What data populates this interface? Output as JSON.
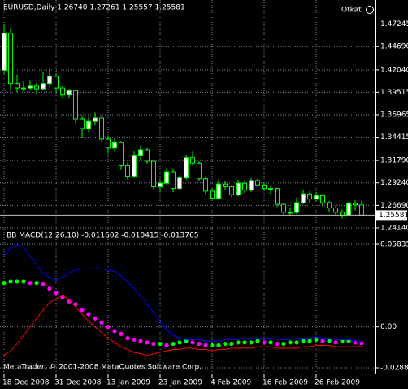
{
  "chart_data": [
    {
      "type": "candlestick",
      "title": "EURUSD,Daily  1.26740 1.27261 1.25557 1.25581",
      "categories": [
        "18 Dec 2008",
        null,
        null,
        null,
        null,
        null,
        null,
        null,
        "31 Dec 2008",
        null,
        null,
        null,
        null,
        null,
        null,
        null,
        "13 Jan 2009",
        null,
        null,
        null,
        null,
        null,
        null,
        null,
        "23 Jan 2009",
        null,
        null,
        null,
        null,
        null,
        null,
        null,
        "4 Feb 2009",
        null,
        null,
        null,
        null,
        null,
        null,
        null,
        "16 Feb 2009",
        null,
        null,
        null,
        null,
        null,
        null,
        null,
        "26 Feb 2009",
        null,
        null,
        null,
        null,
        null,
        null,
        null
      ],
      "open": [
        1.42,
        1.462,
        1.405,
        1.4,
        1.4,
        1.402,
        1.399,
        1.405,
        1.413,
        1.4,
        1.392,
        1.397,
        1.365,
        1.354,
        1.362,
        1.366,
        1.342,
        1.332,
        1.338,
        1.312,
        1.3,
        1.323,
        1.33,
        1.317,
        1.288,
        1.292,
        1.305,
        1.286,
        1.298,
        1.321,
        1.315,
        1.297,
        1.283,
        1.275,
        1.291,
        1.288,
        1.279,
        1.292,
        1.284,
        1.295,
        1.29,
        1.286,
        1.286,
        1.268,
        1.259,
        1.259,
        1.27,
        1.28,
        1.274,
        1.278,
        1.27,
        1.264,
        1.259,
        1.256,
        1.269,
        1.2674
      ],
      "high": [
        1.472,
        1.468,
        1.415,
        1.408,
        1.409,
        1.406,
        1.418,
        1.422,
        1.416,
        1.404,
        1.399,
        1.398,
        1.369,
        1.367,
        1.372,
        1.369,
        1.346,
        1.344,
        1.34,
        1.316,
        1.328,
        1.335,
        1.332,
        1.319,
        1.296,
        1.309,
        1.308,
        1.301,
        1.324,
        1.328,
        1.317,
        1.3,
        1.287,
        1.296,
        1.294,
        1.29,
        1.296,
        1.295,
        1.298,
        1.297,
        1.293,
        1.289,
        1.287,
        1.27,
        1.264,
        1.276,
        1.285,
        1.283,
        1.282,
        1.28,
        1.272,
        1.266,
        1.262,
        1.272,
        1.273,
        1.27261
      ],
      "low": [
        1.415,
        1.398,
        1.395,
        1.396,
        1.398,
        1.394,
        1.397,
        1.401,
        1.395,
        1.388,
        1.388,
        1.36,
        1.343,
        1.35,
        1.358,
        1.338,
        1.326,
        1.328,
        1.307,
        1.296,
        1.298,
        1.318,
        1.314,
        1.284,
        1.282,
        1.29,
        1.282,
        1.284,
        1.296,
        1.312,
        1.294,
        1.279,
        1.273,
        1.273,
        1.285,
        1.276,
        1.277,
        1.281,
        1.282,
        1.288,
        1.283,
        1.28,
        1.265,
        1.255,
        1.255,
        1.257,
        1.268,
        1.27,
        1.271,
        1.266,
        1.26,
        1.256,
        1.252,
        1.254,
        1.261,
        1.25557
      ],
      "close": [
        1.462,
        1.405,
        1.4,
        1.4,
        1.402,
        1.399,
        1.405,
        1.413,
        1.4,
        1.392,
        1.397,
        1.365,
        1.354,
        1.362,
        1.366,
        1.342,
        1.332,
        1.338,
        1.312,
        1.3,
        1.323,
        1.33,
        1.317,
        1.288,
        1.292,
        1.305,
        1.286,
        1.298,
        1.321,
        1.315,
        1.297,
        1.283,
        1.275,
        1.291,
        1.288,
        1.279,
        1.292,
        1.284,
        1.295,
        1.29,
        1.286,
        1.286,
        1.268,
        1.259,
        1.259,
        1.27,
        1.28,
        1.274,
        1.278,
        1.27,
        1.264,
        1.259,
        1.256,
        1.269,
        1.2674,
        1.25581
      ],
      "up_color": "#ffffff",
      "down_color": "#000000",
      "wick_color": "#00ff00",
      "ylim": [
        1.2414,
        1.496
      ],
      "yticks": [
        1.47245,
        {
          "value": 1.4469,
          "label": "1.44690"
        },
        {
          "value": 1.4204,
          "label": "1.42040"
        },
        1.39515,
        1.36965,
        1.34415,
        {
          "value": 1.3179,
          "label": "1.31790"
        },
        {
          "value": 1.2924,
          "label": "1.29240"
        },
        {
          "value": 1.2669,
          "label": "1.26690"
        },
        {
          "value": 1.2414,
          "label": "1.24140"
        }
      ],
      "current_price": {
        "value": 1.25581,
        "label": "1.25581"
      },
      "grid": true
    },
    {
      "type": "line",
      "title": "BB MACD(12,26,10) -0.011602 -0.010415 -0.013765",
      "series": [
        {
          "color": "#ff00ff",
          "up_color": "#00ff00",
          "style": "dots",
          "values": [
            0.031,
            0.032,
            0.032,
            0.032,
            0.031,
            0.031,
            0.03,
            0.027,
            0.024,
            0.021,
            0.018,
            0.016,
            0.012,
            0.009,
            0.006,
            0.003,
            0.0,
            -0.003,
            -0.005,
            -0.008,
            -0.009,
            -0.01,
            -0.011,
            -0.012,
            -0.012,
            -0.013,
            -0.012,
            -0.011,
            -0.01,
            -0.011,
            -0.012,
            -0.013,
            -0.013,
            -0.013,
            -0.012,
            -0.012,
            -0.011,
            -0.011,
            -0.011,
            -0.01,
            -0.011,
            -0.011,
            -0.012,
            -0.012,
            -0.011,
            -0.011,
            -0.01,
            -0.01,
            -0.009,
            -0.01,
            -0.01,
            -0.011,
            -0.01,
            -0.01,
            -0.011,
            -0.011602
          ]
        },
        {
          "color": "#0000ff",
          "style": "line",
          "values": [
            0.05,
            0.056,
            0.058,
            0.056,
            0.05,
            0.044,
            0.038,
            0.035,
            0.033,
            0.035,
            0.038,
            0.04,
            0.041,
            0.041,
            0.041,
            0.041,
            0.04,
            0.039,
            0.036,
            0.032,
            0.027,
            0.022,
            0.016,
            0.01,
            0.004,
            -0.002,
            -0.006,
            -0.008,
            -0.009,
            -0.009,
            -0.009,
            -0.01,
            -0.01,
            -0.01,
            -0.009,
            -0.009,
            -0.009,
            -0.008,
            -0.008,
            -0.008,
            -0.008,
            -0.008,
            -0.009,
            -0.009,
            -0.009,
            -0.008,
            -0.008,
            -0.008,
            -0.007,
            -0.008,
            -0.008,
            -0.009,
            -0.009,
            -0.009,
            -0.01,
            -0.010415
          ]
        },
        {
          "color": "#ff0000",
          "style": "line",
          "values": [
            -0.02,
            -0.017,
            -0.012,
            -0.006,
            0.0,
            0.006,
            0.012,
            0.017,
            0.02,
            0.022,
            0.019,
            0.014,
            0.009,
            0.004,
            0.0,
            -0.004,
            -0.008,
            -0.011,
            -0.014,
            -0.016,
            -0.018,
            -0.019,
            -0.02,
            -0.019,
            -0.018,
            -0.017,
            -0.016,
            -0.016,
            -0.015,
            -0.015,
            -0.016,
            -0.016,
            -0.017,
            -0.016,
            -0.016,
            -0.015,
            -0.015,
            -0.015,
            -0.015,
            -0.014,
            -0.014,
            -0.014,
            -0.015,
            -0.015,
            -0.015,
            -0.015,
            -0.014,
            -0.014,
            -0.013,
            -0.013,
            -0.013,
            -0.014,
            -0.014,
            -0.014,
            -0.014,
            -0.013765
          ]
        }
      ],
      "ylim": [
        -0.02888,
        0.05835
      ],
      "yticks": [
        0.05835,
        {
          "value": 0,
          "label": "0.00"
        },
        -0.02888
      ],
      "grid": true
    }
  ],
  "indicator_label": "Otkat",
  "watermark": "MetaTrader, © 2001-2008 MetaQuotes Software Corp."
}
